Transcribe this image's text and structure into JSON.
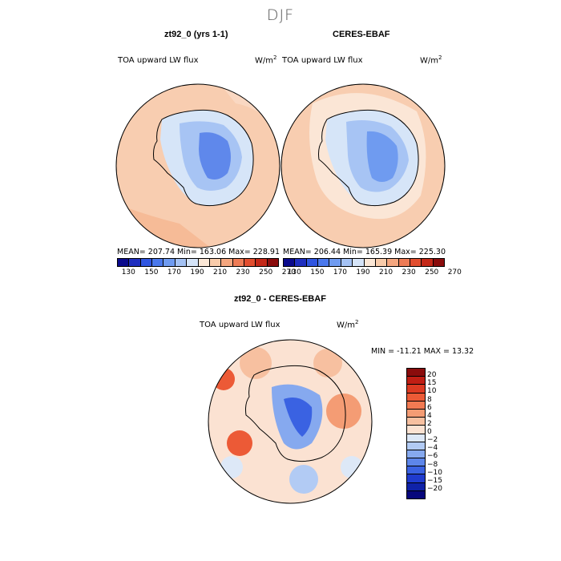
{
  "season": "DJF",
  "panels": {
    "model": {
      "title": "zt92_0 (yrs 1-1)",
      "variable": "TOA upward LW flux",
      "units_base": "W/m",
      "units_exp": "2",
      "stats": "MEAN= 207.74   Min= 163.06   Max= 228.91"
    },
    "obs": {
      "title": "CERES-EBAF",
      "variable": "TOA upward LW flux",
      "units_base": "W/m",
      "units_exp": "2",
      "stats": "MEAN= 206.44   Min= 165.39   Max= 225.30"
    },
    "diff": {
      "title": "zt92_0 - CERES-EBAF",
      "variable": "TOA upward LW flux",
      "units_base": "W/m",
      "units_exp": "2",
      "stats": "MIN = -11.21 MAX =  13.32"
    }
  },
  "colorbar_abs": {
    "tick_labels": [
      "130",
      "150",
      "170",
      "190",
      "210",
      "230",
      "250",
      "270"
    ],
    "colors": [
      "#0a0a8c",
      "#1f2fc0",
      "#2f55e0",
      "#4a78ec",
      "#6f9bf0",
      "#a4c2f4",
      "#d5e4f8",
      "#fbe7d6",
      "#f8cbaa",
      "#f4a67f",
      "#ee7b55",
      "#e24e2f",
      "#c42818",
      "#8a0c0c"
    ]
  },
  "colorbar_diff": {
    "tick_labels": [
      "20",
      "15",
      "10",
      "8",
      "6",
      "4",
      "2",
      "0",
      "−2",
      "−4",
      "−6",
      "−8",
      "−10",
      "−15",
      "−20"
    ],
    "colors": [
      "#8a0c0c",
      "#c01e14",
      "#dc3a22",
      "#ec5a36",
      "#f27a52",
      "#f49c74",
      "#f7c0a0",
      "#fbe2d2",
      "#dde8f7",
      "#b2cbf4",
      "#86a9ef",
      "#5d86ea",
      "#3a62e2",
      "#1f3bce",
      "#0f22a8",
      "#07077c"
    ]
  }
}
